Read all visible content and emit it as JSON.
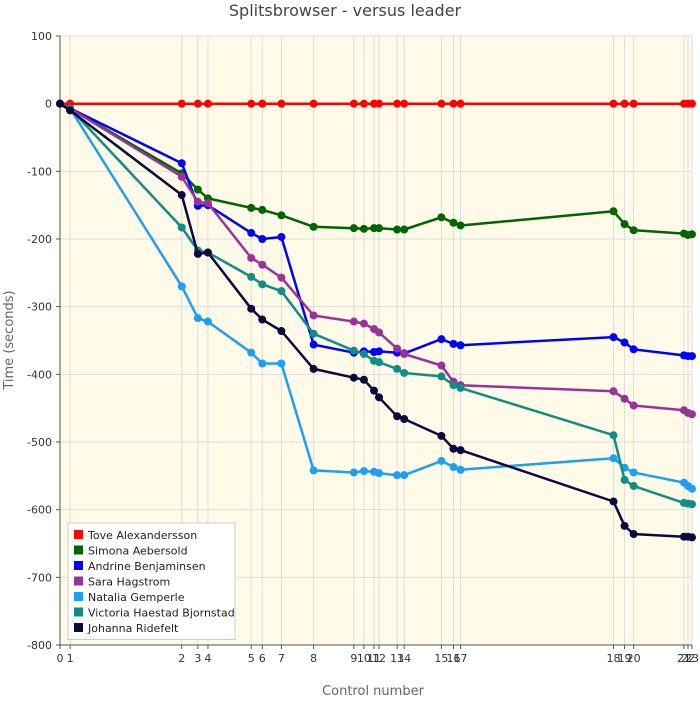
{
  "chart_data": {
    "type": "line",
    "title": "Splitsbrowser - versus leader",
    "xlabel": "Control number",
    "ylabel": "Time (seconds)",
    "ylim": [
      -800,
      100
    ],
    "y_ticks": [
      100,
      0,
      -100,
      -200,
      -300,
      -400,
      -500,
      -600,
      -700,
      -800
    ],
    "x_tick_labels": [
      "0",
      "1",
      "2",
      "3",
      "4",
      "5",
      "6",
      "7",
      "8",
      "9",
      "10",
      "11",
      "12",
      "13",
      "14",
      "15",
      "16",
      "17",
      "18",
      "19",
      "20",
      "21",
      "22",
      "23"
    ],
    "x_positions": [
      0,
      10,
      121,
      137,
      147,
      190,
      201,
      220,
      252,
      292,
      302,
      312,
      317,
      335,
      342,
      379,
      391,
      398,
      550,
      561,
      570,
      620,
      624,
      628
    ],
    "x_range": [
      0,
      628
    ],
    "grid": true,
    "legend_position": "bottom-left",
    "series": [
      {
        "name": "Tove Alexandersson",
        "color": "#ff0000",
        "values": [
          0,
          0,
          0,
          0,
          0,
          0,
          0,
          0,
          0,
          0,
          0,
          0,
          0,
          0,
          0,
          0,
          0,
          0,
          0,
          0,
          0,
          0,
          0,
          0
        ]
      },
      {
        "name": "Simona Aebersold",
        "color": "#006400",
        "values": [
          0,
          -7,
          -103,
          -127,
          -140,
          -154,
          -157,
          -165,
          -182,
          -184,
          -185,
          -184,
          -184,
          -186,
          -186,
          -168,
          -176,
          -180,
          -159,
          -178,
          -187,
          -192,
          -194,
          -193
        ]
      },
      {
        "name": "Andrine Benjaminsen",
        "color": "#0000ff",
        "values": [
          0,
          -7,
          -88,
          -151,
          -150,
          -191,
          -200,
          -197,
          -356,
          -368,
          -366,
          -367,
          -366,
          -368,
          -369,
          -348,
          -355,
          -357,
          -345,
          -353,
          -363,
          -372,
          -373,
          -373
        ]
      },
      {
        "name": "Sara Hagstrom",
        "color": "#993399",
        "values": [
          0,
          -7,
          -108,
          -145,
          -147,
          -228,
          -238,
          -257,
          -313,
          -322,
          -325,
          -333,
          -338,
          -362,
          -370,
          -387,
          -411,
          -416,
          -425,
          -436,
          -446,
          -453,
          -457,
          -459
        ]
      },
      {
        "name": "Natalia Gemperle",
        "color": "#1e9ff0",
        "values": [
          0,
          -7,
          -270,
          -317,
          -322,
          -368,
          -384,
          -384,
          -542,
          -545,
          -543,
          -544,
          -546,
          -549,
          -549,
          -528,
          -537,
          -541,
          -524,
          -538,
          -545,
          -560,
          -565,
          -569
        ]
      },
      {
        "name": "Victoria Haestad Bjornstad",
        "color": "#138c86",
        "values": [
          0,
          -7,
          -183,
          -217,
          -220,
          -256,
          -267,
          -277,
          -340,
          -365,
          -370,
          -380,
          -382,
          -392,
          -398,
          -403,
          -416,
          -420,
          -490,
          -556,
          -565,
          -590,
          -591,
          -592
        ]
      },
      {
        "name": "Johanna Ridefelt",
        "color": "#0a0a3c",
        "values": [
          0,
          -10,
          -135,
          -222,
          -220,
          -303,
          -319,
          -336,
          -392,
          -405,
          -408,
          -424,
          -434,
          -462,
          -466,
          -491,
          -510,
          -512,
          -588,
          -624,
          -636,
          -640,
          -640,
          -641
        ]
      }
    ]
  }
}
